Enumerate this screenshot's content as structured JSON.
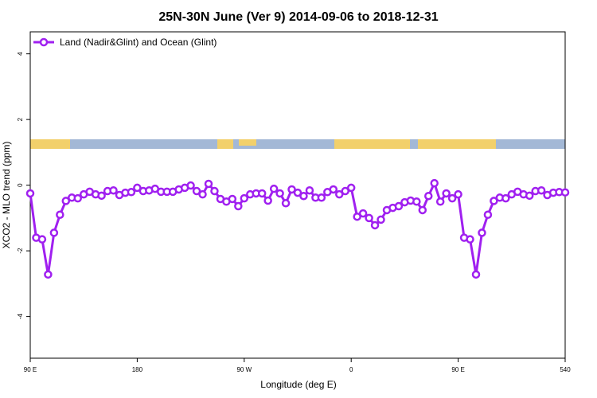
{
  "chart_data": {
    "type": "line",
    "title": "25N-30N June (Ver 9)   2014-09-06 to 2018-12-31",
    "x_label": "Longitude (deg E)",
    "y_label": "XCO2 - MLO trend (ppm)",
    "legend_position": "top-left",
    "xlim": [
      90,
      540
    ],
    "ylim": [
      -5.27,
      4.67
    ],
    "xticks": [
      {
        "value": 90,
        "label": "90 E"
      },
      180,
      {
        "value": 270,
        "label": "90 W"
      },
      {
        "value": 360,
        "label": "0"
      },
      {
        "value": 450,
        "label": "90 E"
      },
      540
    ],
    "yticks": [
      -4,
      -2,
      0,
      2,
      4
    ],
    "x": [
      90,
      95,
      100,
      105,
      110,
      115,
      120,
      125,
      130,
      135,
      140,
      145,
      150,
      155,
      160,
      165,
      170,
      175,
      180,
      185,
      190,
      195,
      200,
      205,
      210,
      215,
      220,
      225,
      230,
      235,
      240,
      245,
      250,
      255,
      260,
      265,
      270,
      275,
      280,
      285,
      290,
      295,
      300,
      305,
      310,
      315,
      320,
      325,
      330,
      335,
      340,
      345,
      350,
      355,
      360,
      365,
      370,
      375,
      380,
      385,
      390,
      395,
      400,
      405,
      410,
      415,
      420,
      425,
      430,
      435,
      440,
      445,
      450,
      455,
      460,
      465,
      470,
      475,
      480,
      485,
      490,
      495,
      500,
      505,
      510,
      515,
      520,
      525,
      530,
      535,
      540
    ],
    "series": [
      {
        "name": "Land (Nadir&Glint) and Ocean (Glint)",
        "color": "#a020f0",
        "values": [
          -0.25,
          -1.6,
          -1.65,
          -2.72,
          -1.45,
          -0.9,
          -0.48,
          -0.38,
          -0.4,
          -0.28,
          -0.2,
          -0.28,
          -0.32,
          -0.18,
          -0.16,
          -0.3,
          -0.23,
          -0.21,
          -0.08,
          -0.18,
          -0.16,
          -0.11,
          -0.2,
          -0.2,
          -0.2,
          -0.13,
          -0.08,
          -0.01,
          -0.18,
          -0.28,
          0.04,
          -0.18,
          -0.42,
          -0.5,
          -0.42,
          -0.64,
          -0.4,
          -0.28,
          -0.25,
          -0.25,
          -0.47,
          -0.11,
          -0.25,
          -0.55,
          -0.13,
          -0.23,
          -0.33,
          -0.16,
          -0.38,
          -0.38,
          -0.21,
          -0.13,
          -0.28,
          -0.18,
          -0.08,
          -0.96,
          -0.86,
          -1.0,
          -1.22,
          -1.05,
          -0.76,
          -0.69,
          -0.64,
          -0.52,
          -0.47,
          -0.5,
          -0.76,
          -0.33,
          0.06,
          -0.5,
          -0.25,
          -0.4,
          -0.28,
          -1.6,
          -1.65,
          -2.72,
          -1.45,
          -0.9,
          -0.48,
          -0.38,
          -0.4,
          -0.28,
          -0.2,
          -0.28,
          -0.32,
          -0.18,
          -0.16,
          -0.3,
          -0.23,
          -0.21,
          -0.22
        ]
      }
    ]
  }
}
